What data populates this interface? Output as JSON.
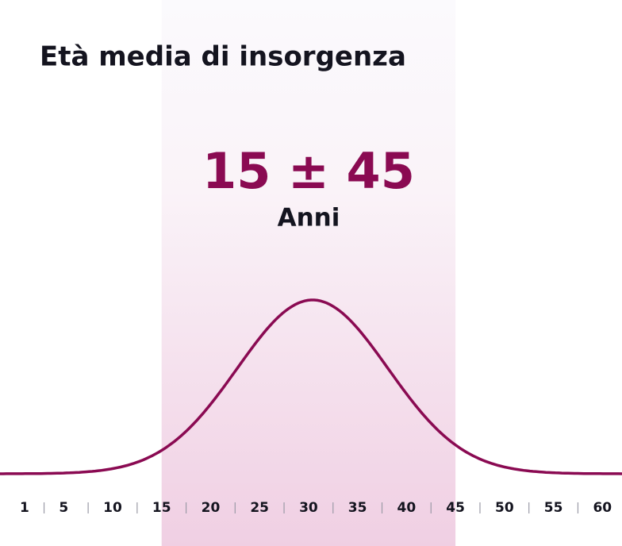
{
  "title": "Età media di insorgenza",
  "range_label": "15 ± 45",
  "unit": "Anni",
  "axis": {
    "xlim": [
      -1.5,
      62
    ],
    "xticks": [
      1,
      5,
      10,
      15,
      20,
      25,
      30,
      35,
      40,
      45,
      50,
      55,
      60
    ]
  },
  "highlight": [
    15,
    45
  ]
}
